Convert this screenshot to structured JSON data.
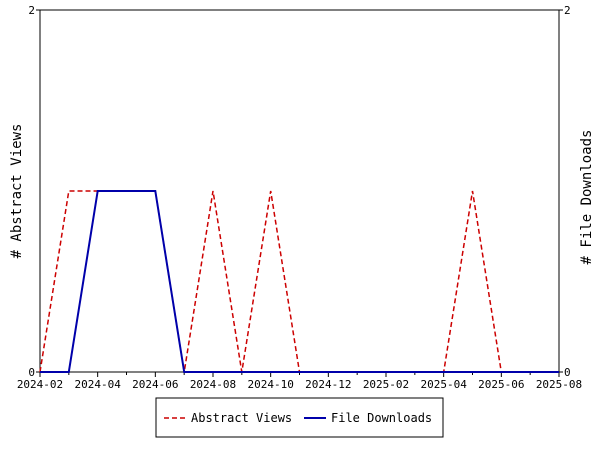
{
  "chart_data": {
    "type": "line",
    "title": "",
    "xlabel": "",
    "ylabel_left": "# Abstract Views",
    "ylabel_right": "# File Downloads",
    "ylim": [
      0,
      2
    ],
    "y_ticks": [
      "0",
      "2"
    ],
    "x_tick_labels": [
      "2024-02",
      "2024-04",
      "2024-06",
      "2024-08",
      "2024-10",
      "2024-12",
      "2025-02",
      "2025-04",
      "2025-06",
      "2025-08"
    ],
    "x": [
      "2024-02",
      "2024-03",
      "2024-04",
      "2024-05",
      "2024-06",
      "2024-07",
      "2024-08",
      "2024-09",
      "2024-10",
      "2024-11",
      "2024-12",
      "2025-01",
      "2025-02",
      "2025-03",
      "2025-04",
      "2025-05",
      "2025-06",
      "2025-07",
      "2025-08"
    ],
    "series": [
      {
        "name": "Abstract Views",
        "color": "#cc0000",
        "dash": "dashed",
        "values": [
          0,
          1,
          1,
          1,
          1,
          0,
          1,
          0,
          1,
          0,
          0,
          0,
          0,
          0,
          0,
          1,
          0,
          0,
          0
        ]
      },
      {
        "name": "File Downloads",
        "color": "#0000aa",
        "dash": "solid",
        "values": [
          0,
          0,
          1,
          1,
          1,
          0,
          0,
          0,
          0,
          0,
          0,
          0,
          0,
          0,
          0,
          0,
          0,
          0,
          0
        ]
      }
    ],
    "grid": false,
    "legend_position": "bottom-center"
  }
}
